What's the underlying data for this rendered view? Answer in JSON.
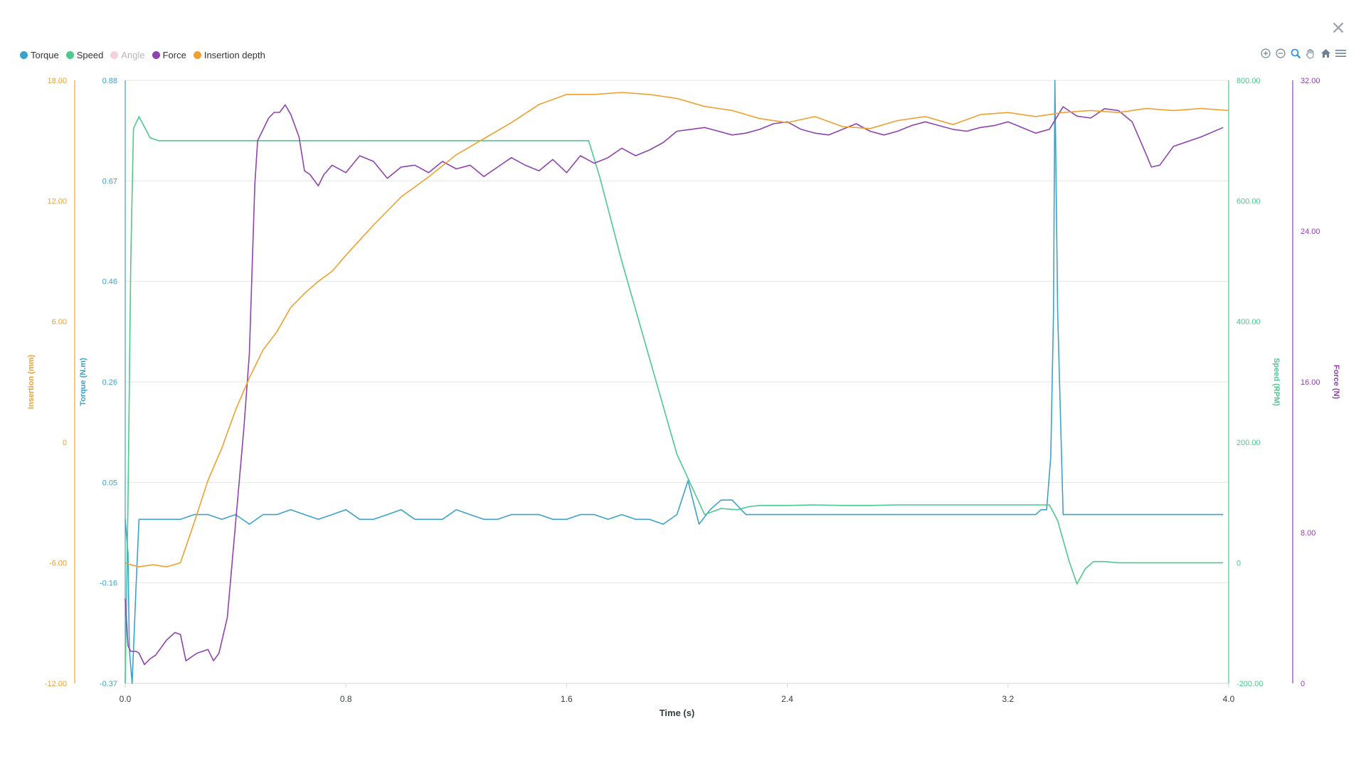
{
  "window": {
    "close_label": "×"
  },
  "legend": [
    {
      "label": "Torque",
      "color": "#3ba3c9",
      "visible": true
    },
    {
      "label": "Speed",
      "color": "#4cc98d",
      "visible": true
    },
    {
      "label": "Angle",
      "color": "#f6d1da",
      "visible": false
    },
    {
      "label": "Force",
      "color": "#8e44ad",
      "visible": true
    },
    {
      "label": "Insertion depth",
      "color": "#f0a030",
      "visible": true
    }
  ],
  "toolbar": [
    "zoom-in-icon",
    "zoom-out-icon",
    "zoom-selection-icon",
    "pan-icon",
    "home-icon",
    "menu-icon"
  ],
  "chart_data": {
    "type": "line",
    "xlabel": "Time (s)",
    "xlim": [
      0,
      4
    ],
    "x_ticks": [
      "0.0",
      "0.8",
      "1.6",
      "2.4",
      "3.2",
      "4.0"
    ],
    "grid": "horizontal",
    "legend_position": "top-left",
    "axes": [
      {
        "id": "insertion",
        "label": "Insertion (mm)",
        "side": "left-outer",
        "color": "#f0a030",
        "range": [
          -12,
          18
        ],
        "ticks": [
          "18.00",
          "12.00",
          "6.00",
          "0",
          "-6.00",
          "-12.00"
        ]
      },
      {
        "id": "torque",
        "label": "Torque (N.m)",
        "side": "left-inner",
        "color": "#3ba3c9",
        "range": [
          -0.37,
          0.88
        ],
        "ticks": [
          "0.88",
          "0.67",
          "0.46",
          "0.26",
          "0.05",
          "-0.16",
          "-0.37"
        ]
      },
      {
        "id": "speed",
        "label": "Speed (RPM)",
        "side": "right-inner",
        "color": "#4cc98d",
        "range": [
          -200,
          800
        ],
        "ticks": [
          "800.00",
          "600.00",
          "400.00",
          "200.00",
          "0",
          "-200.00"
        ]
      },
      {
        "id": "force",
        "label": "Force (N)",
        "side": "right-outer",
        "color": "#8e44ad",
        "range": [
          0,
          32
        ],
        "ticks": [
          "32.00",
          "24.00",
          "16.00",
          "8.00",
          "0"
        ]
      }
    ],
    "series": [
      {
        "name": "Torque",
        "axis": "torque",
        "color": "#3ba3c9",
        "x": [
          0.0,
          0.01,
          0.015,
          0.025,
          0.04,
          0.05,
          0.08,
          0.2,
          0.25,
          0.3,
          0.35,
          0.4,
          0.45,
          0.5,
          0.55,
          0.6,
          0.65,
          0.7,
          0.75,
          0.8,
          0.85,
          0.9,
          0.95,
          1.0,
          1.05,
          1.1,
          1.15,
          1.2,
          1.25,
          1.3,
          1.35,
          1.4,
          1.45,
          1.5,
          1.55,
          1.6,
          1.65,
          1.7,
          1.75,
          1.8,
          1.85,
          1.9,
          1.95,
          2.0,
          2.04,
          2.08,
          2.12,
          2.16,
          2.2,
          2.25,
          2.3,
          2.4,
          2.5,
          2.6,
          2.7,
          2.8,
          2.9,
          3.0,
          3.1,
          3.2,
          3.25,
          3.28,
          3.3,
          3.32,
          3.34,
          3.355,
          3.365,
          3.37,
          3.38,
          3.4,
          3.6,
          3.98
        ],
        "y": [
          -0.03,
          -0.1,
          -0.3,
          -0.37,
          -0.16,
          -0.03,
          -0.03,
          -0.03,
          -0.02,
          -0.02,
          -0.03,
          -0.02,
          -0.04,
          -0.02,
          -0.02,
          -0.01,
          -0.02,
          -0.03,
          -0.02,
          -0.01,
          -0.03,
          -0.03,
          -0.02,
          -0.01,
          -0.03,
          -0.03,
          -0.03,
          -0.01,
          -0.02,
          -0.03,
          -0.03,
          -0.02,
          -0.02,
          -0.02,
          -0.03,
          -0.03,
          -0.02,
          -0.02,
          -0.03,
          -0.02,
          -0.03,
          -0.03,
          -0.04,
          -0.02,
          0.05,
          -0.04,
          -0.01,
          0.01,
          0.01,
          -0.02,
          -0.02,
          -0.02,
          -0.02,
          -0.02,
          -0.02,
          -0.02,
          -0.02,
          -0.02,
          -0.02,
          -0.02,
          -0.02,
          -0.02,
          -0.02,
          -0.01,
          -0.01,
          0.1,
          0.4,
          0.88,
          0.4,
          -0.02,
          -0.02,
          -0.02
        ]
      },
      {
        "name": "Speed",
        "axis": "speed",
        "color": "#4cc98d",
        "x": [
          0.0,
          0.01,
          0.02,
          0.03,
          0.05,
          0.09,
          0.12,
          0.3,
          0.6,
          0.9,
          1.2,
          1.5,
          1.65,
          1.68,
          1.72,
          1.8,
          1.9,
          2.0,
          2.1,
          2.16,
          2.22,
          2.26,
          2.3,
          2.4,
          2.5,
          2.6,
          2.7,
          2.8,
          2.9,
          3.0,
          3.1,
          3.2,
          3.3,
          3.35,
          3.38,
          3.42,
          3.45,
          3.48,
          3.51,
          3.55,
          3.6,
          3.7,
          3.8,
          3.98
        ],
        "y": [
          -200,
          100,
          500,
          720,
          740,
          705,
          700,
          700,
          700,
          700,
          700,
          700,
          700,
          700,
          640,
          500,
          340,
          180,
          80,
          90,
          88,
          93,
          95,
          95,
          96,
          95,
          95,
          96,
          96,
          96,
          96,
          96,
          96,
          96,
          70,
          5,
          -35,
          -10,
          2,
          2,
          0,
          0,
          0,
          0
        ]
      },
      {
        "name": "Force",
        "axis": "force",
        "color": "#8e44ad",
        "x": [
          0.0,
          0.01,
          0.02,
          0.04,
          0.05,
          0.07,
          0.09,
          0.11,
          0.15,
          0.18,
          0.2,
          0.22,
          0.26,
          0.3,
          0.32,
          0.34,
          0.37,
          0.4,
          0.43,
          0.45,
          0.47,
          0.48,
          0.5,
          0.52,
          0.54,
          0.56,
          0.58,
          0.6,
          0.63,
          0.65,
          0.67,
          0.7,
          0.72,
          0.75,
          0.8,
          0.85,
          0.9,
          0.95,
          1.0,
          1.05,
          1.1,
          1.15,
          1.2,
          1.25,
          1.3,
          1.35,
          1.4,
          1.45,
          1.5,
          1.55,
          1.6,
          1.65,
          1.7,
          1.75,
          1.8,
          1.85,
          1.9,
          1.95,
          2.0,
          2.05,
          2.1,
          2.15,
          2.2,
          2.25,
          2.3,
          2.35,
          2.4,
          2.45,
          2.5,
          2.55,
          2.6,
          2.65,
          2.7,
          2.75,
          2.8,
          2.85,
          2.9,
          2.95,
          3.0,
          3.05,
          3.1,
          3.15,
          3.2,
          3.25,
          3.3,
          3.35,
          3.4,
          3.45,
          3.5,
          3.55,
          3.6,
          3.65,
          3.7,
          3.72,
          3.75,
          3.8,
          3.9,
          3.98
        ],
        "y": [
          4.5,
          2.0,
          1.7,
          1.7,
          1.6,
          1.0,
          1.3,
          1.5,
          2.3,
          2.7,
          2.6,
          1.2,
          1.6,
          1.8,
          1.2,
          1.6,
          3.5,
          8.5,
          13.5,
          17.5,
          26.5,
          28.8,
          29.4,
          30.0,
          30.3,
          30.3,
          30.7,
          30.2,
          29.0,
          27.2,
          27.0,
          26.4,
          27.0,
          27.5,
          27.1,
          28.0,
          27.7,
          26.8,
          27.4,
          27.5,
          27.1,
          27.7,
          27.3,
          27.5,
          26.9,
          27.4,
          27.9,
          27.5,
          27.2,
          27.8,
          27.1,
          28.0,
          27.6,
          27.9,
          28.4,
          28.0,
          28.3,
          28.7,
          29.3,
          29.4,
          29.5,
          29.3,
          29.1,
          29.2,
          29.4,
          29.7,
          29.8,
          29.4,
          29.2,
          29.1,
          29.4,
          29.7,
          29.3,
          29.1,
          29.3,
          29.6,
          29.8,
          29.6,
          29.4,
          29.3,
          29.5,
          29.6,
          29.8,
          29.5,
          29.2,
          29.4,
          30.6,
          30.1,
          30.0,
          30.5,
          30.4,
          29.8,
          28.1,
          27.4,
          27.5,
          28.5,
          29.0,
          29.5
        ]
      },
      {
        "name": "Insertion depth",
        "axis": "insertion",
        "color": "#f0a030",
        "x": [
          0.0,
          0.02,
          0.05,
          0.1,
          0.15,
          0.2,
          0.25,
          0.3,
          0.35,
          0.4,
          0.45,
          0.5,
          0.55,
          0.6,
          0.65,
          0.7,
          0.75,
          0.8,
          0.9,
          1.0,
          1.1,
          1.2,
          1.3,
          1.4,
          1.5,
          1.6,
          1.7,
          1.8,
          1.9,
          2.0,
          2.1,
          2.2,
          2.3,
          2.4,
          2.5,
          2.6,
          2.7,
          2.8,
          2.9,
          3.0,
          3.1,
          3.2,
          3.3,
          3.4,
          3.5,
          3.6,
          3.7,
          3.8,
          3.9,
          4.0
        ],
        "y": [
          -6.0,
          -6.1,
          -6.2,
          -6.1,
          -6.2,
          -6.0,
          -4.0,
          -1.9,
          -0.3,
          1.6,
          3.2,
          4.6,
          5.5,
          6.7,
          7.4,
          8.0,
          8.5,
          9.3,
          10.8,
          12.2,
          13.2,
          14.3,
          15.1,
          15.9,
          16.8,
          17.3,
          17.3,
          17.4,
          17.3,
          17.1,
          16.7,
          16.5,
          16.1,
          15.9,
          16.2,
          15.7,
          15.6,
          16.0,
          16.2,
          15.8,
          16.3,
          16.4,
          16.2,
          16.4,
          16.5,
          16.4,
          16.6,
          16.5,
          16.6,
          16.5
        ]
      }
    ]
  }
}
